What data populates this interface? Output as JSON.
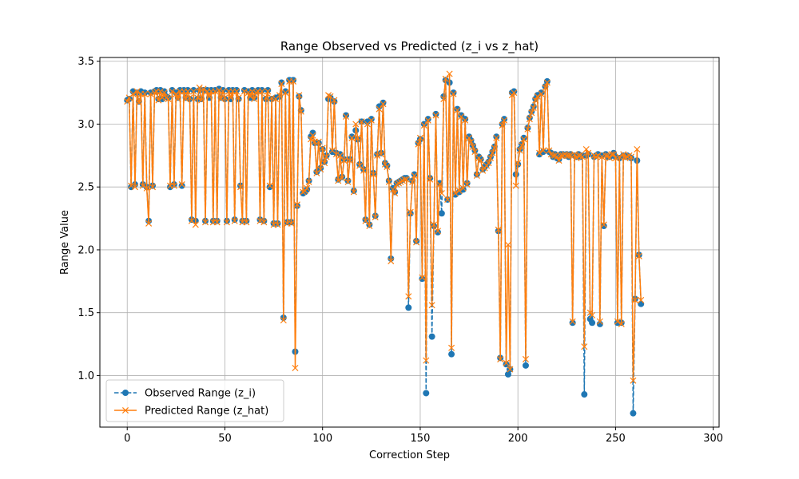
{
  "chart_data": {
    "type": "line",
    "title": "Range Observed vs Predicted (z_i vs z_hat)",
    "xlabel": "Correction Step",
    "ylabel": "Range Value",
    "xlim": [
      -14,
      303
    ],
    "ylim": [
      0.59,
      3.53
    ],
    "xticks": [
      0,
      50,
      100,
      150,
      200,
      250,
      300
    ],
    "yticks": [
      1.0,
      1.5,
      2.0,
      2.5,
      3.0,
      3.5
    ],
    "xtick_labels": [
      "0",
      "50",
      "100",
      "150",
      "200",
      "250",
      "300"
    ],
    "ytick_labels": [
      "1.0",
      "1.5",
      "2.0",
      "2.5",
      "3.0",
      "3.5"
    ],
    "grid": true,
    "legend_position": "lower-left",
    "series": [
      {
        "name": "Observed Range (z_i)",
        "color": "#1f77b4",
        "line_style": "dashed",
        "marker": "circle",
        "values": [
          3.19,
          3.2,
          2.5,
          3.26,
          2.52,
          3.25,
          3.18,
          3.26,
          2.52,
          3.25,
          2.5,
          2.23,
          3.25,
          2.51,
          3.26,
          3.27,
          3.2,
          3.27,
          3.2,
          3.26,
          3.22,
          3.21,
          2.5,
          3.27,
          2.52,
          3.25,
          3.21,
          3.27,
          2.51,
          3.27,
          3.21,
          3.27,
          3.2,
          2.24,
          3.27,
          2.23,
          3.2,
          3.27,
          3.2,
          3.27,
          2.23,
          3.27,
          3.21,
          3.27,
          2.23,
          3.27,
          2.23,
          3.28,
          3.21,
          3.27,
          3.2,
          2.23,
          3.27,
          3.2,
          3.27,
          2.24,
          3.27,
          3.2,
          2.51,
          2.23,
          3.27,
          2.23,
          3.26,
          3.21,
          3.27,
          3.21,
          3.26,
          3.27,
          2.24,
          3.27,
          2.23,
          3.2,
          3.27,
          2.5,
          3.2,
          2.21,
          3.21,
          2.21,
          3.22,
          3.33,
          1.46,
          3.26,
          2.22,
          3.35,
          2.22,
          3.35,
          1.19,
          2.35,
          3.22,
          3.11,
          2.45,
          2.46,
          2.48,
          2.55,
          2.9,
          2.93,
          2.85,
          2.62,
          2.85,
          2.65,
          2.8,
          2.7,
          2.75,
          3.2,
          3.21,
          2.78,
          3.18,
          2.77,
          2.56,
          2.76,
          2.58,
          2.72,
          3.07,
          2.55,
          2.72,
          2.9,
          2.47,
          2.95,
          2.88,
          2.68,
          3.02,
          2.64,
          2.24,
          3.02,
          2.2,
          3.04,
          2.61,
          2.27,
          2.76,
          3.14,
          2.77,
          3.17,
          2.69,
          2.67,
          2.55,
          1.93,
          2.49,
          2.46,
          2.53,
          2.54,
          2.55,
          2.56,
          2.57,
          2.57,
          1.54,
          2.29,
          2.55,
          2.6,
          2.07,
          2.85,
          2.88,
          1.77,
          3.0,
          0.86,
          3.04,
          2.57,
          1.31,
          2.19,
          3.08,
          2.14,
          2.53,
          2.29,
          3.22,
          3.35,
          2.4,
          3.33,
          1.17,
          3.25,
          2.44,
          3.12,
          2.46,
          3.07,
          2.48,
          3.04,
          2.53,
          2.9,
          2.87,
          2.83,
          2.79,
          2.6,
          2.74,
          2.72,
          2.64,
          2.66,
          2.68,
          2.7,
          2.74,
          2.78,
          2.82,
          2.9,
          2.15,
          1.14,
          3.0,
          3.04,
          1.09,
          1.01,
          1.05,
          3.25,
          3.26,
          2.6,
          2.68,
          2.8,
          2.84,
          2.89,
          1.08,
          2.97,
          3.05,
          3.1,
          3.14,
          3.2,
          3.23,
          2.76,
          3.25,
          2.78,
          3.3,
          3.34,
          2.78,
          2.77,
          2.74,
          2.76,
          2.73,
          2.72,
          2.76,
          2.76,
          2.75,
          2.76,
          2.74,
          2.76,
          1.42,
          2.75,
          2.74,
          2.76,
          2.74,
          2.75,
          0.85,
          2.75,
          2.76,
          1.45,
          1.42,
          2.74,
          2.75,
          2.76,
          1.41,
          2.75,
          2.19,
          2.76,
          2.74,
          2.74,
          2.75,
          2.77,
          2.74,
          1.42,
          2.73,
          1.42,
          2.75,
          2.74,
          2.75,
          2.74,
          2.73,
          0.7,
          1.61,
          2.71,
          1.96,
          1.57
        ]
      },
      {
        "name": "Predicted Range (z_hat)",
        "color": "#ff7f0e",
        "line_style": "solid",
        "marker": "x",
        "values": [
          3.18,
          3.21,
          2.51,
          3.24,
          2.5,
          3.26,
          3.17,
          3.24,
          2.51,
          3.24,
          2.49,
          2.21,
          3.24,
          2.5,
          3.25,
          3.26,
          3.19,
          3.26,
          3.21,
          3.25,
          3.21,
          3.2,
          2.51,
          3.26,
          2.51,
          3.24,
          3.2,
          3.26,
          2.52,
          3.26,
          3.2,
          3.26,
          3.21,
          2.23,
          3.26,
          2.2,
          3.21,
          3.29,
          3.19,
          3.28,
          2.22,
          3.26,
          3.22,
          3.26,
          2.22,
          3.26,
          2.22,
          3.27,
          3.2,
          3.26,
          3.21,
          2.22,
          3.26,
          3.21,
          3.26,
          2.23,
          3.26,
          3.21,
          2.5,
          2.22,
          3.26,
          2.22,
          3.25,
          3.22,
          3.26,
          3.2,
          3.25,
          3.26,
          2.23,
          3.26,
          2.22,
          3.21,
          3.26,
          2.51,
          3.21,
          2.2,
          3.2,
          2.2,
          3.23,
          3.32,
          1.44,
          3.25,
          2.21,
          3.34,
          2.21,
          3.34,
          1.06,
          2.36,
          3.23,
          3.1,
          2.46,
          2.47,
          2.49,
          2.54,
          2.88,
          2.91,
          2.86,
          2.61,
          2.86,
          2.64,
          2.81,
          2.69,
          2.74,
          3.23,
          3.22,
          2.79,
          3.19,
          2.76,
          2.55,
          2.75,
          2.57,
          2.71,
          3.06,
          2.54,
          2.71,
          2.89,
          2.46,
          3.0,
          2.89,
          2.67,
          3.02,
          2.63,
          2.23,
          3.0,
          2.19,
          3.03,
          2.6,
          2.26,
          2.75,
          3.12,
          2.76,
          3.16,
          2.68,
          2.66,
          2.54,
          1.91,
          2.48,
          2.45,
          2.52,
          2.53,
          2.54,
          2.55,
          2.56,
          2.56,
          1.63,
          2.3,
          2.54,
          2.59,
          2.06,
          2.84,
          2.89,
          1.78,
          2.99,
          1.12,
          3.03,
          2.56,
          1.56,
          2.2,
          3.07,
          2.15,
          2.52,
          2.45,
          3.2,
          3.36,
          2.4,
          3.4,
          1.22,
          3.24,
          2.45,
          3.11,
          2.47,
          3.06,
          2.49,
          3.03,
          2.52,
          2.89,
          2.86,
          2.82,
          2.78,
          2.59,
          2.73,
          2.71,
          2.63,
          2.65,
          2.67,
          2.69,
          2.73,
          2.77,
          2.81,
          2.89,
          2.16,
          1.13,
          2.99,
          3.03,
          1.1,
          2.04,
          1.05,
          3.23,
          3.25,
          2.51,
          2.69,
          2.79,
          2.83,
          2.88,
          1.13,
          2.96,
          3.04,
          3.09,
          3.13,
          3.19,
          3.22,
          2.77,
          3.24,
          2.79,
          3.29,
          3.33,
          2.79,
          2.76,
          2.75,
          2.75,
          2.74,
          2.71,
          2.75,
          2.75,
          2.76,
          2.75,
          2.75,
          2.75,
          1.43,
          2.76,
          2.73,
          2.75,
          2.75,
          2.74,
          1.23,
          2.8,
          2.77,
          1.5,
          1.48,
          2.75,
          2.74,
          2.75,
          1.43,
          2.74,
          2.2,
          2.75,
          2.75,
          2.73,
          2.76,
          2.76,
          2.73,
          1.43,
          2.74,
          1.41,
          2.76,
          2.73,
          2.74,
          2.75,
          2.74,
          0.96,
          1.6,
          2.8,
          1.95,
          1.6
        ]
      }
    ]
  }
}
